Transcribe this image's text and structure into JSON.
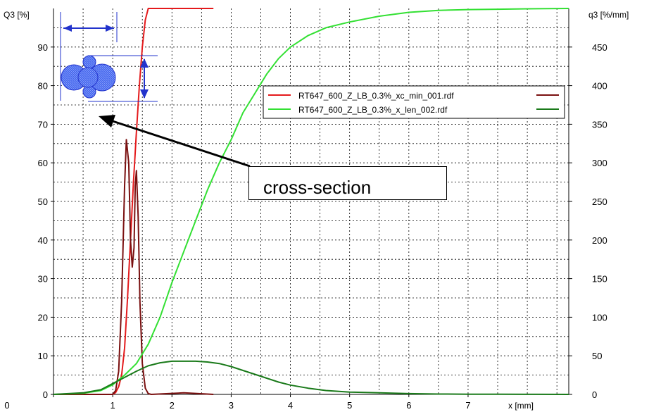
{
  "chart_data": {
    "type": "line",
    "xlabel": "x [mm]",
    "ylabel_left": "Q3 [%]",
    "ylabel_right": "q3 [%/mm]",
    "xlim": [
      0,
      8.7
    ],
    "ylim_left": [
      0,
      100
    ],
    "ylim_right": [
      0,
      500
    ],
    "x_ticks": [
      0,
      1,
      2,
      3,
      4,
      5,
      6,
      7
    ],
    "y_left_ticks": [
      0,
      10,
      20,
      30,
      40,
      50,
      60,
      70,
      80,
      90
    ],
    "y_right_ticks": [
      0,
      50,
      100,
      150,
      200,
      250,
      300,
      350,
      400,
      450
    ],
    "grid": true,
    "legend_position": "top-right",
    "series": [
      {
        "name": "RT647_600_Z_LB_0.3%_xc_min_001.rdf",
        "axis": "left",
        "kind": "Q3",
        "color": "#e41a1c",
        "x": [
          0,
          1.0,
          1.05,
          1.1,
          1.15,
          1.2,
          1.25,
          1.3,
          1.35,
          1.4,
          1.45,
          1.5,
          1.55,
          1.6,
          1.7,
          2.7
        ],
        "y": [
          0,
          0,
          0.5,
          2,
          5,
          12,
          25,
          40,
          55,
          68,
          80,
          90,
          97,
          100,
          100,
          100
        ]
      },
      {
        "name": "RT647_600_Z_LB_0.3%_xc_min_001.rdf",
        "axis": "right",
        "kind": "q3",
        "color": "#7a1010",
        "x": [
          0,
          1.0,
          1.05,
          1.1,
          1.15,
          1.2,
          1.23,
          1.27,
          1.3,
          1.33,
          1.36,
          1.38,
          1.4,
          1.43,
          1.46,
          1.5,
          1.55,
          1.6,
          1.65,
          2.2,
          2.7
        ],
        "y": [
          0,
          0,
          5,
          30,
          120,
          270,
          330,
          300,
          200,
          165,
          190,
          270,
          290,
          230,
          120,
          40,
          8,
          1,
          0,
          2,
          0
        ]
      },
      {
        "name": "RT647_600_Z_LB_0.3%_x_len_002.rdf",
        "axis": "left",
        "kind": "Q3",
        "color": "#33e033",
        "x": [
          0,
          0.5,
          0.8,
          1.0,
          1.2,
          1.4,
          1.6,
          1.8,
          2.0,
          2.2,
          2.4,
          2.6,
          2.8,
          3.0,
          3.2,
          3.4,
          3.6,
          3.8,
          4.0,
          4.3,
          4.6,
          5.0,
          5.5,
          6.0,
          6.5,
          7.0,
          7.5,
          8.0,
          8.7
        ],
        "y": [
          0,
          0.3,
          1,
          2.5,
          5,
          8,
          13,
          20,
          29,
          37,
          45,
          53,
          60,
          66,
          73,
          78,
          83,
          87,
          90,
          93,
          95,
          96.5,
          98,
          99,
          99.5,
          99.7,
          99.8,
          99.9,
          100
        ]
      },
      {
        "name": "RT647_600_Z_LB_0.3%_x_len_002.rdf",
        "axis": "right",
        "kind": "q3",
        "color": "#1a7a1a",
        "x": [
          0,
          0.5,
          0.8,
          1.0,
          1.2,
          1.4,
          1.6,
          1.8,
          2.0,
          2.2,
          2.4,
          2.6,
          2.8,
          3.0,
          3.2,
          3.4,
          3.6,
          3.8,
          4.0,
          4.3,
          4.6,
          5.0,
          5.5,
          6.0,
          6.5,
          7.0,
          7.5,
          8.0,
          8.7
        ],
        "y": [
          0,
          2,
          6,
          14,
          22,
          30,
          37,
          41,
          43,
          43,
          43,
          42,
          40,
          36,
          31,
          26,
          21,
          16,
          12,
          8,
          5,
          3,
          2,
          1,
          0.5,
          0.3,
          0.2,
          0.1,
          0
        ]
      }
    ],
    "legend": [
      {
        "label": "RT647_600_Z_LB_0.3%_xc_min_001.rdf",
        "left_color": "#e41a1c",
        "right_color": "#7a1010"
      },
      {
        "label": "RT647_600_Z_LB_0.3%_x_len_002.rdf",
        "left_color": "#33e033",
        "right_color": "#1a7a1a"
      }
    ],
    "annotation": {
      "text": "cross-section",
      "arrow_from": {
        "x": 3.5,
        "y": 60
      },
      "arrow_to": {
        "x": 0.9,
        "y": 72
      }
    },
    "inset_icon": "particle-cluster-icon"
  }
}
